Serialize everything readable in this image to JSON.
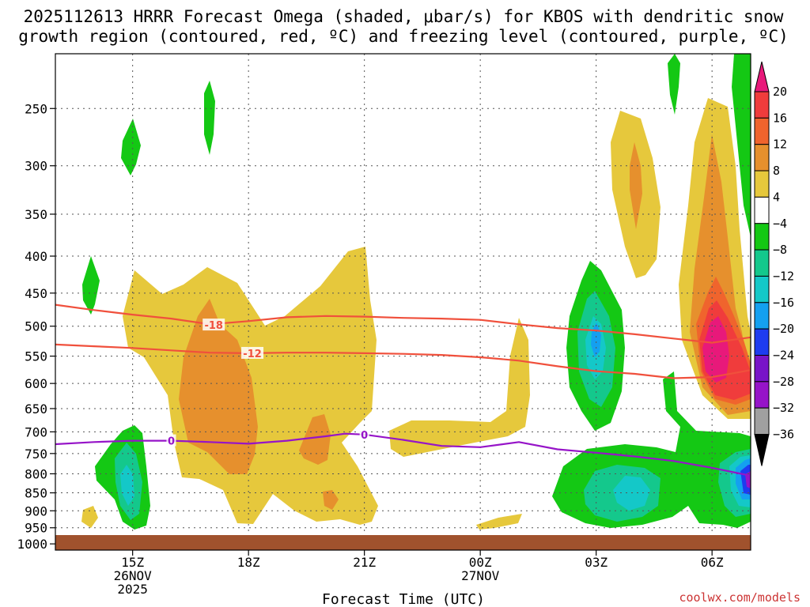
{
  "header": {
    "title_line1": "2025112613 HRRR Forecast Omega (shaded, μbar/s) for KBOS with dendritic snow",
    "title_line2": "growth region (contoured, red, ºC) and freezing level (contoured, purple, ºC)"
  },
  "footer": {
    "xlabel": "Forecast Time (UTC)",
    "credit": "coolwx.com/models"
  },
  "chart_data": {
    "type": "time-height cross section",
    "x_axis": {
      "unit": "hours from 2025-11-26 13Z",
      "range": [
        0,
        18
      ],
      "ticks": [
        {
          "x": 2,
          "line1": "15Z",
          "line2": "26NOV",
          "line3": "2025"
        },
        {
          "x": 5,
          "line1": "18Z",
          "line2": "",
          "line3": ""
        },
        {
          "x": 8,
          "line1": "21Z",
          "line2": "",
          "line3": ""
        },
        {
          "x": 11,
          "line1": "00Z",
          "line2": "27NOV",
          "line3": ""
        },
        {
          "x": 14,
          "line1": "03Z",
          "line2": "",
          "line3": ""
        },
        {
          "x": 17,
          "line1": "06Z",
          "line2": "",
          "line3": ""
        }
      ]
    },
    "y_axis": {
      "unit": "hPa",
      "scale": "log-pressure",
      "range": [
        1020,
        210
      ],
      "ticks": [
        250,
        300,
        350,
        400,
        450,
        500,
        550,
        600,
        650,
        700,
        750,
        800,
        850,
        900,
        950,
        1000
      ]
    },
    "colorbar": {
      "unit": "μbar/s",
      "labels": [
        "20",
        "16",
        "12",
        "8",
        "4",
        "−4",
        "−8",
        "−12",
        "−16",
        "−20",
        "−24",
        "−28",
        "−32",
        "−36"
      ],
      "bins": [
        {
          "range": [
            20,
            99
          ],
          "color": "#e8197a"
        },
        {
          "range": [
            16,
            20
          ],
          "color": "#f03c3c"
        },
        {
          "range": [
            12,
            16
          ],
          "color": "#f0642d"
        },
        {
          "range": [
            8,
            12
          ],
          "color": "#e6902d"
        },
        {
          "range": [
            4,
            8
          ],
          "color": "#e6c83c"
        },
        {
          "range": [
            -4,
            4
          ],
          "color": "#ffffff"
        },
        {
          "range": [
            -8,
            -4
          ],
          "color": "#14c814"
        },
        {
          "range": [
            -12,
            -8
          ],
          "color": "#14c88c"
        },
        {
          "range": [
            -16,
            -12
          ],
          "color": "#14c8c8"
        },
        {
          "range": [
            -20,
            -16
          ],
          "color": "#14a0f0"
        },
        {
          "range": [
            -24,
            -20
          ],
          "color": "#1e3cf0"
        },
        {
          "range": [
            -28,
            -24
          ],
          "color": "#7814c8"
        },
        {
          "range": [
            -32,
            -28
          ],
          "color": "#9614c8"
        },
        {
          "range": [
            -36,
            -32
          ],
          "color": "#a0a0a0"
        },
        {
          "range": [
            -99,
            -36
          ],
          "color": "#000000"
        }
      ]
    },
    "contours": {
      "dgz_minus18": {
        "label": "-18",
        "color": "#f0503c",
        "label_at": [
          4.1,
          498
        ],
        "x": [
          0,
          1,
          2,
          3,
          4,
          5,
          6,
          7,
          8,
          9,
          10,
          11,
          12,
          13,
          14,
          15,
          16,
          17,
          18
        ],
        "p": [
          467,
          475,
          482,
          488,
          497,
          492,
          486,
          484,
          485,
          487,
          488,
          490,
          497,
          503,
          507,
          513,
          520,
          527,
          518
        ]
      },
      "dgz_minus12": {
        "label": "-12",
        "color": "#f0503c",
        "label_at": [
          5.1,
          545
        ],
        "x": [
          0,
          1,
          2,
          3,
          4,
          5,
          6,
          7,
          8,
          9,
          10,
          11,
          12,
          13,
          14,
          15,
          16,
          17,
          18
        ],
        "p": [
          530,
          533,
          536,
          540,
          544,
          545,
          544,
          544,
          545,
          546,
          548,
          552,
          558,
          568,
          577,
          582,
          590,
          588,
          575
        ]
      },
      "freezing_level": {
        "label": "0",
        "color": "#9614c8",
        "label_at": [
          [
            3.0,
            720
          ],
          [
            8.0,
            706
          ]
        ],
        "x": [
          0,
          1,
          2,
          3,
          4,
          5,
          6,
          7,
          7.5,
          8,
          9,
          10,
          11,
          12,
          13,
          14,
          15,
          16,
          17,
          18
        ],
        "p": [
          728,
          723,
          720,
          720,
          723,
          727,
          720,
          710,
          704,
          706,
          718,
          732,
          735,
          723,
          740,
          748,
          757,
          768,
          785,
          805
        ]
      }
    },
    "omega_features": [
      {
        "id": "ascent-main",
        "value": 4,
        "center": [
          5.0,
          600
        ],
        "note": "broad weak ascent 4-8"
      },
      {
        "id": "ascent-18z",
        "value": 10,
        "center": [
          4.0,
          580
        ],
        "note": "core 8-12"
      },
      {
        "id": "ascent-06z-upper",
        "value": 14,
        "center": [
          17.0,
          560
        ],
        "note": "core exceeds 20"
      },
      {
        "id": "ascent-03z-upper",
        "value": 8,
        "center": [
          14.8,
          330
        ]
      },
      {
        "id": "descent-03z",
        "value": -14,
        "center": [
          14.0,
          550
        ]
      },
      {
        "id": "descent-low",
        "value": -12,
        "center": [
          14.8,
          880
        ]
      },
      {
        "id": "descent-15z",
        "value": -10,
        "center": [
          2.0,
          830
        ]
      },
      {
        "id": "descent-06z-strong",
        "value": -30,
        "center": [
          17.9,
          850
        ]
      }
    ]
  }
}
